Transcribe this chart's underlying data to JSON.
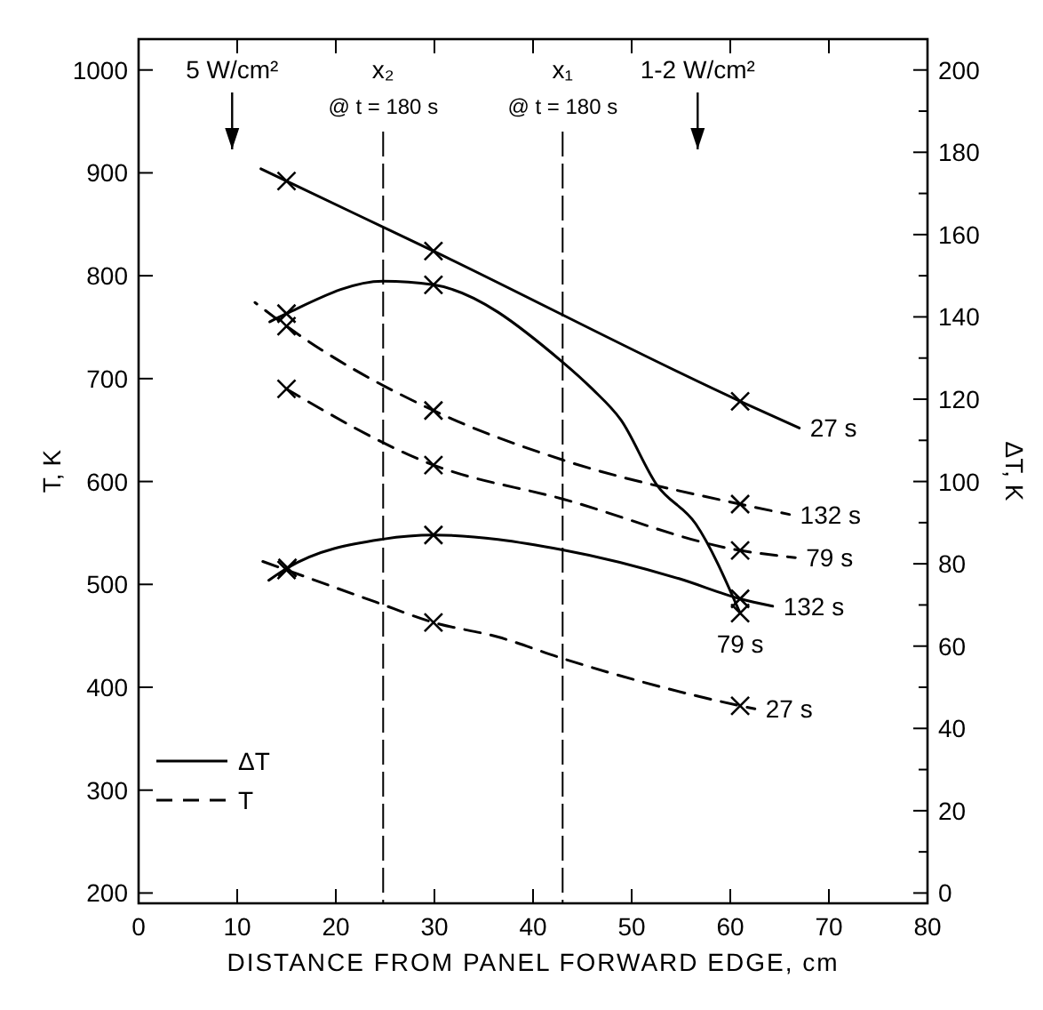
{
  "chart_data": {
    "type": "line",
    "xlabel": "DISTANCE FROM PANEL FORWARD EDGE, cm",
    "ylabel": "T, K",
    "y2label": "ΔT, K",
    "xlim": [
      0,
      80
    ],
    "xticks": [
      0,
      10,
      20,
      30,
      40,
      50,
      60,
      70,
      80
    ],
    "ylim": [
      190,
      1030
    ],
    "yticks": [
      200,
      300,
      400,
      500,
      600,
      700,
      800,
      900,
      1000
    ],
    "y2lim": [
      -2.5,
      207.5
    ],
    "y2ticks": [
      0,
      {
        "value": 10,
        "label": null
      },
      20,
      {
        "value": 30,
        "label": null
      },
      40,
      {
        "value": 50,
        "label": null
      },
      60,
      {
        "value": 70,
        "label": null
      },
      80,
      {
        "value": 90,
        "label": null
      },
      100,
      {
        "value": 110,
        "label": null
      },
      120,
      {
        "value": 130,
        "label": null
      },
      140,
      {
        "value": 150,
        "label": null
      },
      160,
      {
        "value": 170,
        "label": null
      },
      180,
      {
        "value": 190,
        "label": null
      },
      200
    ],
    "grid": false,
    "series": [
      {
        "name": "27 s",
        "axis": "y2",
        "line_style": "solid",
        "marker": "none",
        "color": "#000000",
        "x": [
          12.4,
          15,
          29.9,
          61,
          67
        ],
        "values": [
          176,
          173,
          156,
          119.5,
          113
        ]
      },
      {
        "name": "79 s",
        "axis": "y2",
        "line_style": "solid",
        "marker": "none",
        "color": "#000000",
        "x": [
          13.3,
          15,
          24.8,
          29.9,
          43,
          46,
          48.9,
          52.6,
          56.5,
          61
        ],
        "values": [
          138.8,
          140.8,
          148.7,
          147.8,
          129,
          122.5,
          115,
          99,
          89.7,
          68
        ]
      },
      {
        "name": "132 s",
        "axis": "y2",
        "line_style": "solid",
        "marker": "none",
        "color": "#000000",
        "x": [
          13.2,
          15.1,
          24.8,
          29.9,
          43,
          54.8,
          61,
          64.3
        ],
        "values": [
          76,
          79,
          86,
          87,
          83.4,
          76.4,
          71.5,
          69.7
        ]
      },
      {
        "name": "27 s",
        "axis": "y",
        "line_style": "dashed",
        "marker": "none",
        "color": "#000000",
        "x": [
          12.1,
          15,
          24,
          29.9,
          36.4,
          43,
          61,
          62.5
        ],
        "values": [
          524,
          514,
          483,
          463,
          449,
          428,
          382,
          379
        ]
      },
      {
        "name": "79 s",
        "axis": "y",
        "line_style": "dashed",
        "marker": "none",
        "color": "#000000",
        "x": [
          15,
          29.9,
          43,
          61,
          66.6
        ],
        "values": [
          690,
          616,
          583,
          533,
          526
        ]
      },
      {
        "name": "132 s",
        "axis": "y",
        "line_style": "dashed",
        "marker": "none",
        "color": "#000000",
        "x": [
          11.8,
          15,
          29.9,
          43,
          61,
          66
        ],
        "values": [
          774,
          751,
          669,
          621,
          578,
          568
        ]
      },
      {
        "type": "scatter",
        "axis": "y2",
        "marker": "cross",
        "color": "#000000",
        "x": [
          15,
          29.9,
          61,
          15,
          29.9,
          61,
          15.1,
          29.9,
          61
        ],
        "values": [
          173,
          156,
          119.5,
          140.8,
          147.8,
          68,
          79,
          87,
          71.5
        ]
      },
      {
        "type": "scatter",
        "axis": "y",
        "marker": "cross",
        "color": "#000000",
        "x": [
          15,
          29.9,
          61,
          15,
          29.9,
          61,
          15,
          29.9,
          61
        ],
        "values": [
          514,
          463,
          382,
          690,
          616,
          533,
          751,
          669,
          578
        ]
      }
    ],
    "ref_lines": [
      {
        "axis": "x",
        "value": 24.8,
        "label": "x₂",
        "line_style": "dashed",
        "color": "#000000"
      },
      {
        "axis": "x",
        "value": 43,
        "label": "x₁",
        "line_style": "dashed",
        "color": "#000000"
      }
    ],
    "annotations": [
      "5 W/cm²",
      "@ t = 180 s",
      "@ t = 180 s",
      "1-2 W/cm²",
      "ΔT",
      "T"
    ]
  }
}
